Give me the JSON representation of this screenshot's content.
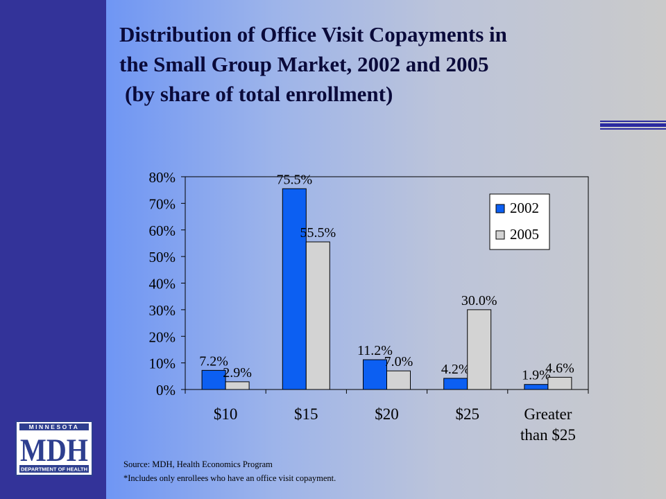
{
  "slide": {
    "title_line1": "Distribution of Office Visit Copayments in",
    "title_line2": "the Small Group Market, 2002 and 2005",
    "title_line3": "(by share of total enrollment)",
    "source": "Source:  MDH, Health Economics Program",
    "footnote": "*Includes only enrollees who have an office visit copayment."
  },
  "logo": {
    "top_text": "MINNESOTA",
    "main_text": "MDH",
    "bottom_text": "DEPARTMENT OF HEALTH",
    "color": "#2e3f8f"
  },
  "chart_data": {
    "type": "bar",
    "categories": [
      "$10",
      "$15",
      "$20",
      "$25",
      "Greater than $25"
    ],
    "series": [
      {
        "name": "2002",
        "values": [
          7.2,
          75.5,
          11.2,
          4.2,
          1.9
        ],
        "labels": [
          "7.2%",
          "75.5%",
          "11.2%",
          "4.2%",
          "1.9%"
        ],
        "color": "#0c5ff2"
      },
      {
        "name": "2005",
        "values": [
          2.9,
          55.5,
          7.0,
          30.0,
          4.6
        ],
        "labels": [
          "2.9%",
          "55.5%",
          "7.0%",
          "30.0%",
          "4.6%"
        ],
        "color": "#d3d3d3"
      }
    ],
    "yticks": [
      "0%",
      "10%",
      "20%",
      "30%",
      "40%",
      "50%",
      "60%",
      "70%",
      "80%"
    ],
    "ylim": [
      0,
      80
    ],
    "legend_position": "top-right",
    "grid": false
  }
}
